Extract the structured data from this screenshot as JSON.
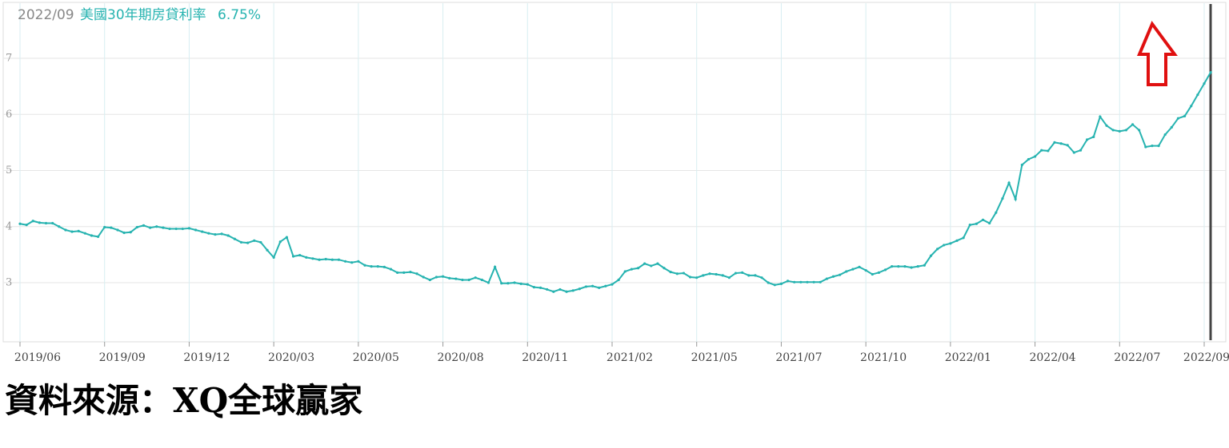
{
  "chart_data": {
    "type": "line",
    "header": {
      "date": "2022/09",
      "value_label": "6.75%"
    },
    "source": "資料來源：XQ全球贏家",
    "categories": [
      "2019/06",
      null,
      null,
      null,
      null,
      null,
      null,
      null,
      null,
      null,
      null,
      null,
      null,
      "2019/09",
      null,
      null,
      null,
      null,
      null,
      null,
      null,
      null,
      null,
      null,
      null,
      null,
      "2019/12",
      null,
      null,
      null,
      null,
      null,
      null,
      null,
      null,
      null,
      null,
      null,
      null,
      "2020/03",
      null,
      null,
      null,
      null,
      null,
      null,
      null,
      null,
      null,
      null,
      null,
      null,
      "2020/05",
      null,
      null,
      null,
      null,
      null,
      null,
      null,
      null,
      null,
      null,
      null,
      null,
      "2020/08",
      null,
      null,
      null,
      null,
      null,
      null,
      null,
      null,
      null,
      null,
      null,
      null,
      "2020/11",
      null,
      null,
      null,
      null,
      null,
      null,
      null,
      null,
      null,
      null,
      null,
      null,
      "2021/02",
      null,
      null,
      null,
      null,
      null,
      null,
      null,
      null,
      null,
      null,
      null,
      null,
      "2021/05",
      null,
      null,
      null,
      null,
      null,
      null,
      null,
      null,
      null,
      null,
      null,
      null,
      "2021/07",
      null,
      null,
      null,
      null,
      null,
      null,
      null,
      null,
      null,
      null,
      null,
      null,
      "2021/10",
      null,
      null,
      null,
      null,
      null,
      null,
      null,
      null,
      null,
      null,
      null,
      null,
      "2022/01",
      null,
      null,
      null,
      null,
      null,
      null,
      null,
      null,
      null,
      null,
      null,
      null,
      "2022/04",
      null,
      null,
      null,
      null,
      null,
      null,
      null,
      null,
      null,
      null,
      null,
      null,
      "2022/07",
      null,
      null,
      null,
      null,
      null,
      null,
      null,
      null,
      null,
      null,
      null,
      null,
      "2022/09",
      null
    ],
    "series": [
      {
        "name": "美國30年期房貸利率",
        "color": "#26b3b0",
        "values": [
          4.05,
          4.03,
          4.1,
          4.07,
          4.06,
          4.06,
          4.0,
          3.94,
          3.91,
          3.92,
          3.88,
          3.84,
          3.82,
          3.99,
          3.98,
          3.94,
          3.89,
          3.9,
          3.99,
          4.02,
          3.98,
          4.0,
          3.98,
          3.96,
          3.96,
          3.96,
          3.97,
          3.94,
          3.91,
          3.88,
          3.86,
          3.87,
          3.84,
          3.78,
          3.72,
          3.71,
          3.75,
          3.72,
          3.58,
          3.45,
          3.73,
          3.81,
          3.47,
          3.49,
          3.45,
          3.43,
          3.41,
          3.42,
          3.41,
          3.41,
          3.38,
          3.36,
          3.38,
          3.31,
          3.29,
          3.29,
          3.28,
          3.24,
          3.18,
          3.18,
          3.19,
          3.16,
          3.1,
          3.05,
          3.1,
          3.11,
          3.08,
          3.07,
          3.05,
          3.05,
          3.09,
          3.05,
          3.0,
          3.28,
          2.99,
          2.99,
          3.0,
          2.98,
          2.97,
          2.92,
          2.91,
          2.88,
          2.84,
          2.88,
          2.84,
          2.86,
          2.89,
          2.93,
          2.94,
          2.91,
          2.94,
          2.97,
          3.05,
          3.2,
          3.24,
          3.26,
          3.34,
          3.3,
          3.34,
          3.26,
          3.19,
          3.16,
          3.17,
          3.1,
          3.09,
          3.13,
          3.16,
          3.15,
          3.13,
          3.09,
          3.17,
          3.18,
          3.13,
          3.13,
          3.09,
          3.0,
          2.96,
          2.98,
          3.03,
          3.01,
          3.01,
          3.01,
          3.01,
          3.01,
          3.07,
          3.11,
          3.14,
          3.2,
          3.24,
          3.28,
          3.22,
          3.15,
          3.18,
          3.23,
          3.29,
          3.29,
          3.29,
          3.27,
          3.29,
          3.31,
          3.48,
          3.6,
          3.67,
          3.7,
          3.75,
          3.8,
          4.03,
          4.05,
          4.12,
          4.06,
          4.25,
          4.5,
          4.78,
          4.49,
          5.1,
          5.2,
          5.25,
          5.36,
          5.35,
          5.5,
          5.48,
          5.45,
          5.32,
          5.36,
          5.55,
          5.6,
          5.96,
          5.8,
          5.72,
          5.7,
          5.72,
          5.82,
          5.72,
          5.42,
          5.44,
          5.44,
          5.64,
          5.77,
          5.93,
          5.97,
          6.15,
          6.35,
          6.55,
          6.75
        ]
      }
    ],
    "ylim": [
      2,
      8
    ],
    "yticks": [
      3,
      4,
      5,
      6,
      7
    ],
    "grid": true
  }
}
